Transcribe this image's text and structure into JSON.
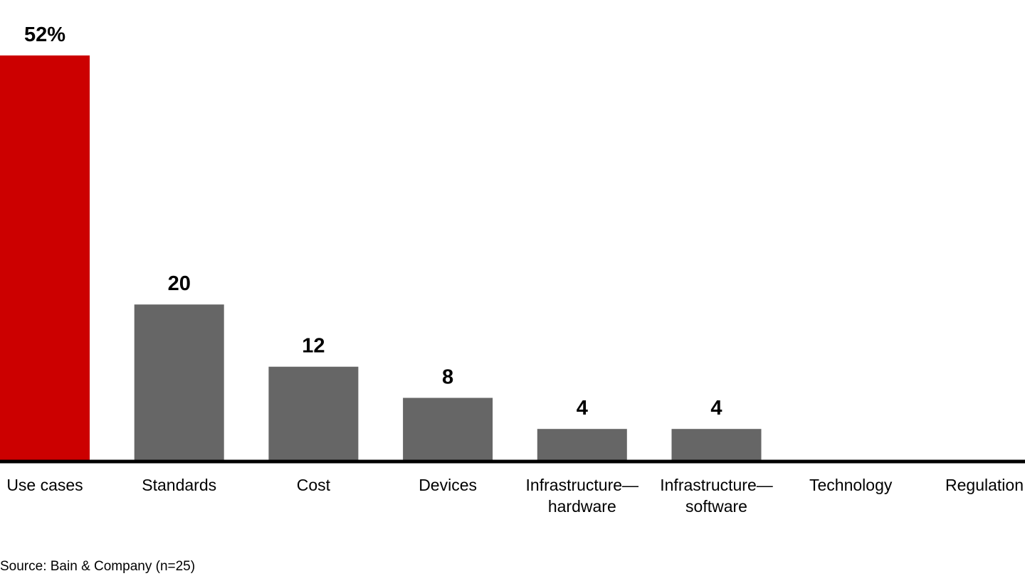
{
  "source_note": "Source: Bain & Company (n=25)",
  "colors": {
    "highlight": "#cc0000",
    "bar": "#666666",
    "axis": "#000000"
  },
  "chart_data": {
    "type": "bar",
    "categories": [
      "Use cases",
      "Standards",
      "Cost",
      "Devices",
      "Infrastructure—\nhardware",
      "Infrastructure—\nsoftware",
      "Technology",
      "Regulation"
    ],
    "values": [
      52,
      20,
      12,
      8,
      4,
      4,
      0,
      0
    ],
    "value_labels": [
      "52%",
      "20",
      "12",
      "8",
      "4",
      "4",
      "",
      ""
    ],
    "highlight_index": 0,
    "title": "",
    "xlabel": "",
    "ylabel": "",
    "ylim": [
      0,
      52
    ],
    "grid": false
  }
}
